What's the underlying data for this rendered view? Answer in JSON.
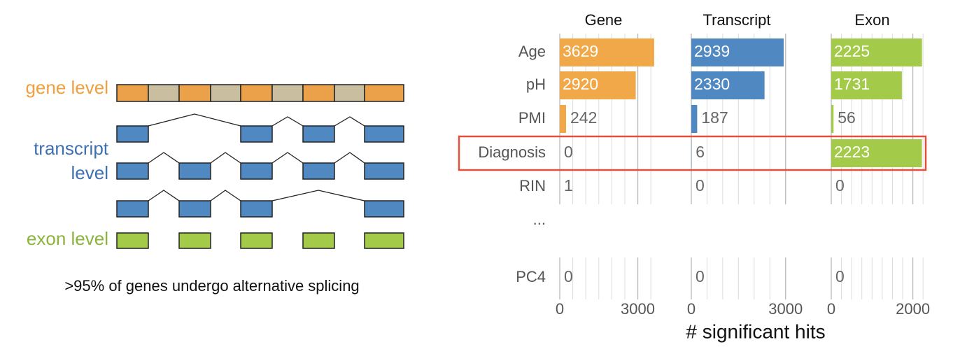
{
  "diagram": {
    "gene_label": "gene level",
    "transcript_label": [
      "transcript",
      "level"
    ],
    "exon_label": "exon level",
    "caption": ">95% of genes undergo alternative splicing"
  },
  "chart_data": {
    "type": "bar",
    "orientation": "horizontal",
    "categories": [
      "Age",
      "pH",
      "PMI",
      "Diagnosis",
      "RIN",
      "...",
      "PC4"
    ],
    "xlabel": "# significant hits",
    "series": [
      {
        "name": "Gene",
        "color": "#f0a848",
        "values": [
          3629,
          2920,
          242,
          0,
          1,
          null,
          0
        ],
        "xlim": [
          0,
          3900
        ],
        "xticks": [
          0,
          3000
        ],
        "xminor": [
          500,
          1000,
          1500,
          2000,
          2500,
          3500
        ]
      },
      {
        "name": "Transcript",
        "color": "#5088c2",
        "values": [
          2939,
          2330,
          187,
          6,
          0,
          null,
          0
        ],
        "xlim": [
          0,
          3340
        ],
        "xticks": [
          0,
          3000
        ],
        "xminor": [
          500,
          1000,
          1500,
          2000,
          2500
        ]
      },
      {
        "name": "Exon",
        "color": "#a4ca4a",
        "values": [
          2225,
          1731,
          56,
          2223,
          0,
          null,
          0
        ],
        "xlim": [
          0,
          2350
        ],
        "xticks": [
          0,
          2000
        ],
        "xminor": [
          250,
          500,
          750,
          1000,
          1250,
          1500,
          1750,
          2250
        ]
      }
    ],
    "grid": true
  }
}
